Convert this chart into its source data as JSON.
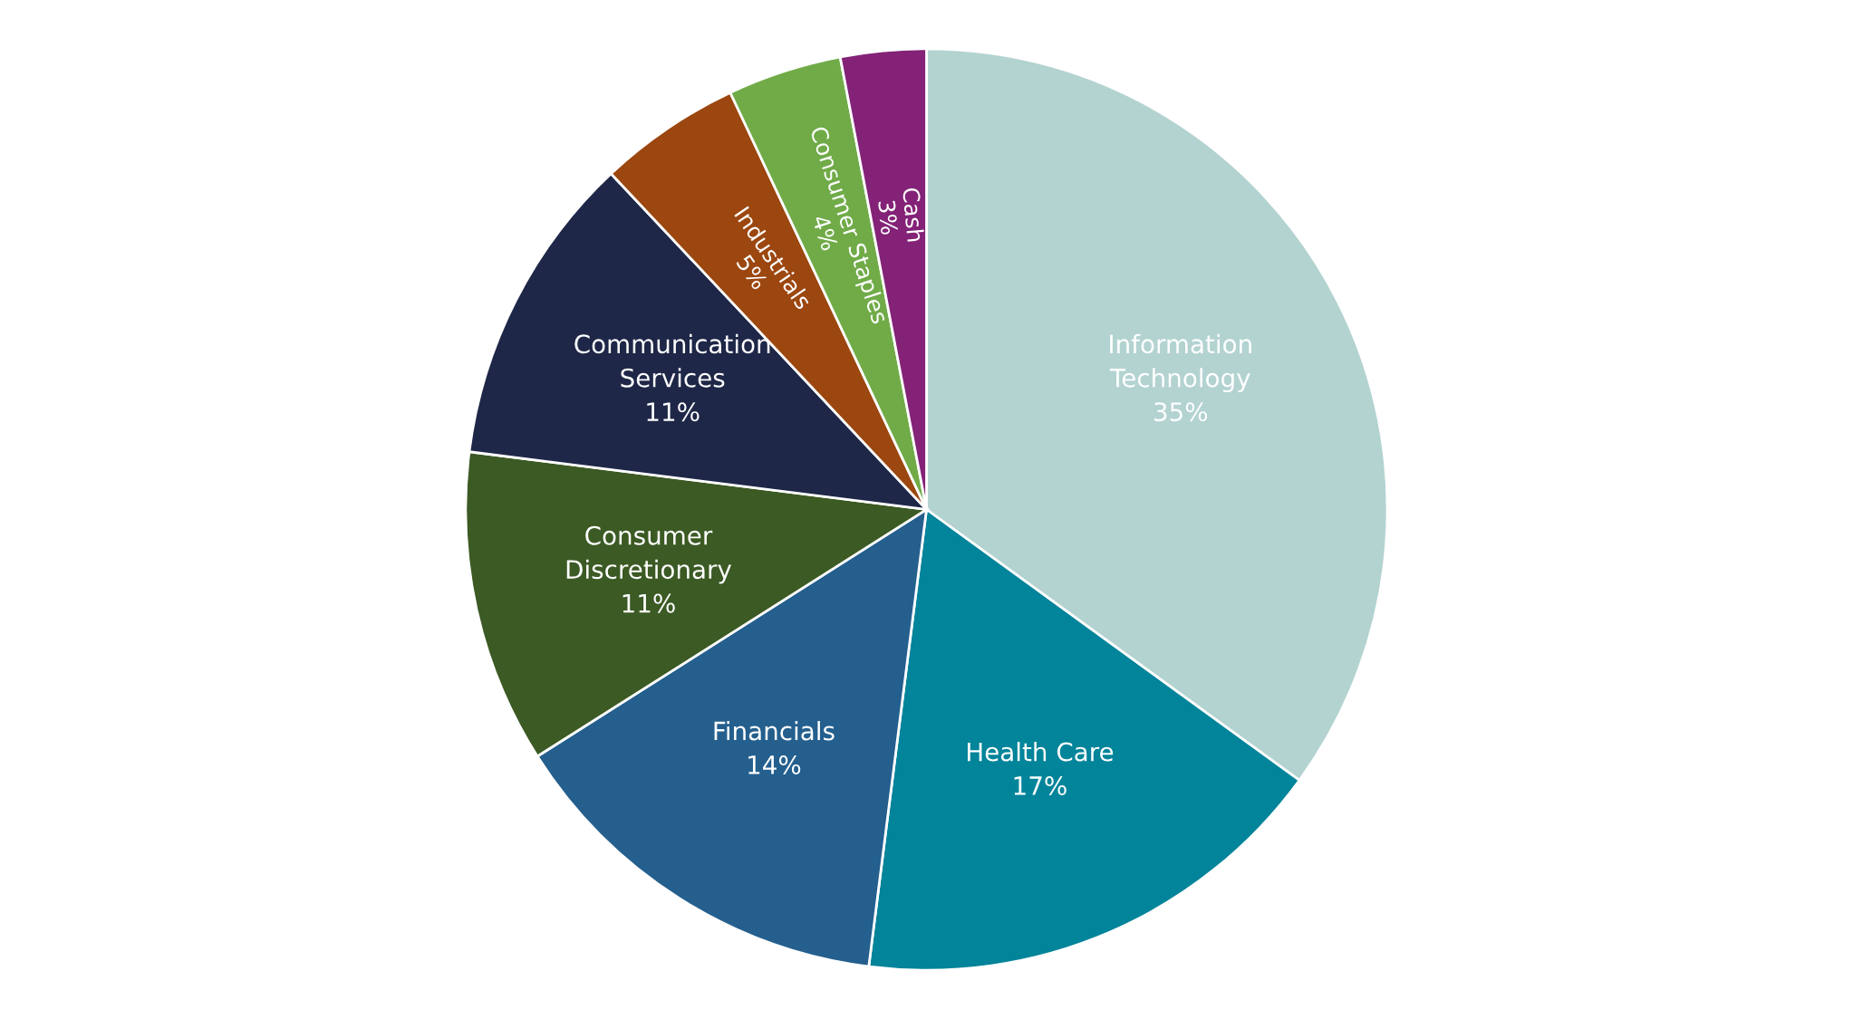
{
  "chart_data": {
    "type": "pie",
    "categories": [
      "Information Technology",
      "Health Care",
      "Financials",
      "Consumer Discretionary",
      "Communication Services",
      "Industrials",
      "Consumer Staples",
      "Cash"
    ],
    "values": [
      35,
      17,
      14,
      11,
      11,
      5,
      4,
      3
    ],
    "value_labels": [
      "35%",
      "17%",
      "14%",
      "11%",
      "11%",
      "5%",
      "4%",
      "3%"
    ],
    "colors": [
      "#b3d3d1",
      "#02849a",
      "#245f8e",
      "#3c5a24",
      "#1f2748",
      "#9c4710",
      "#70ab48",
      "#832277"
    ],
    "legend": false
  }
}
